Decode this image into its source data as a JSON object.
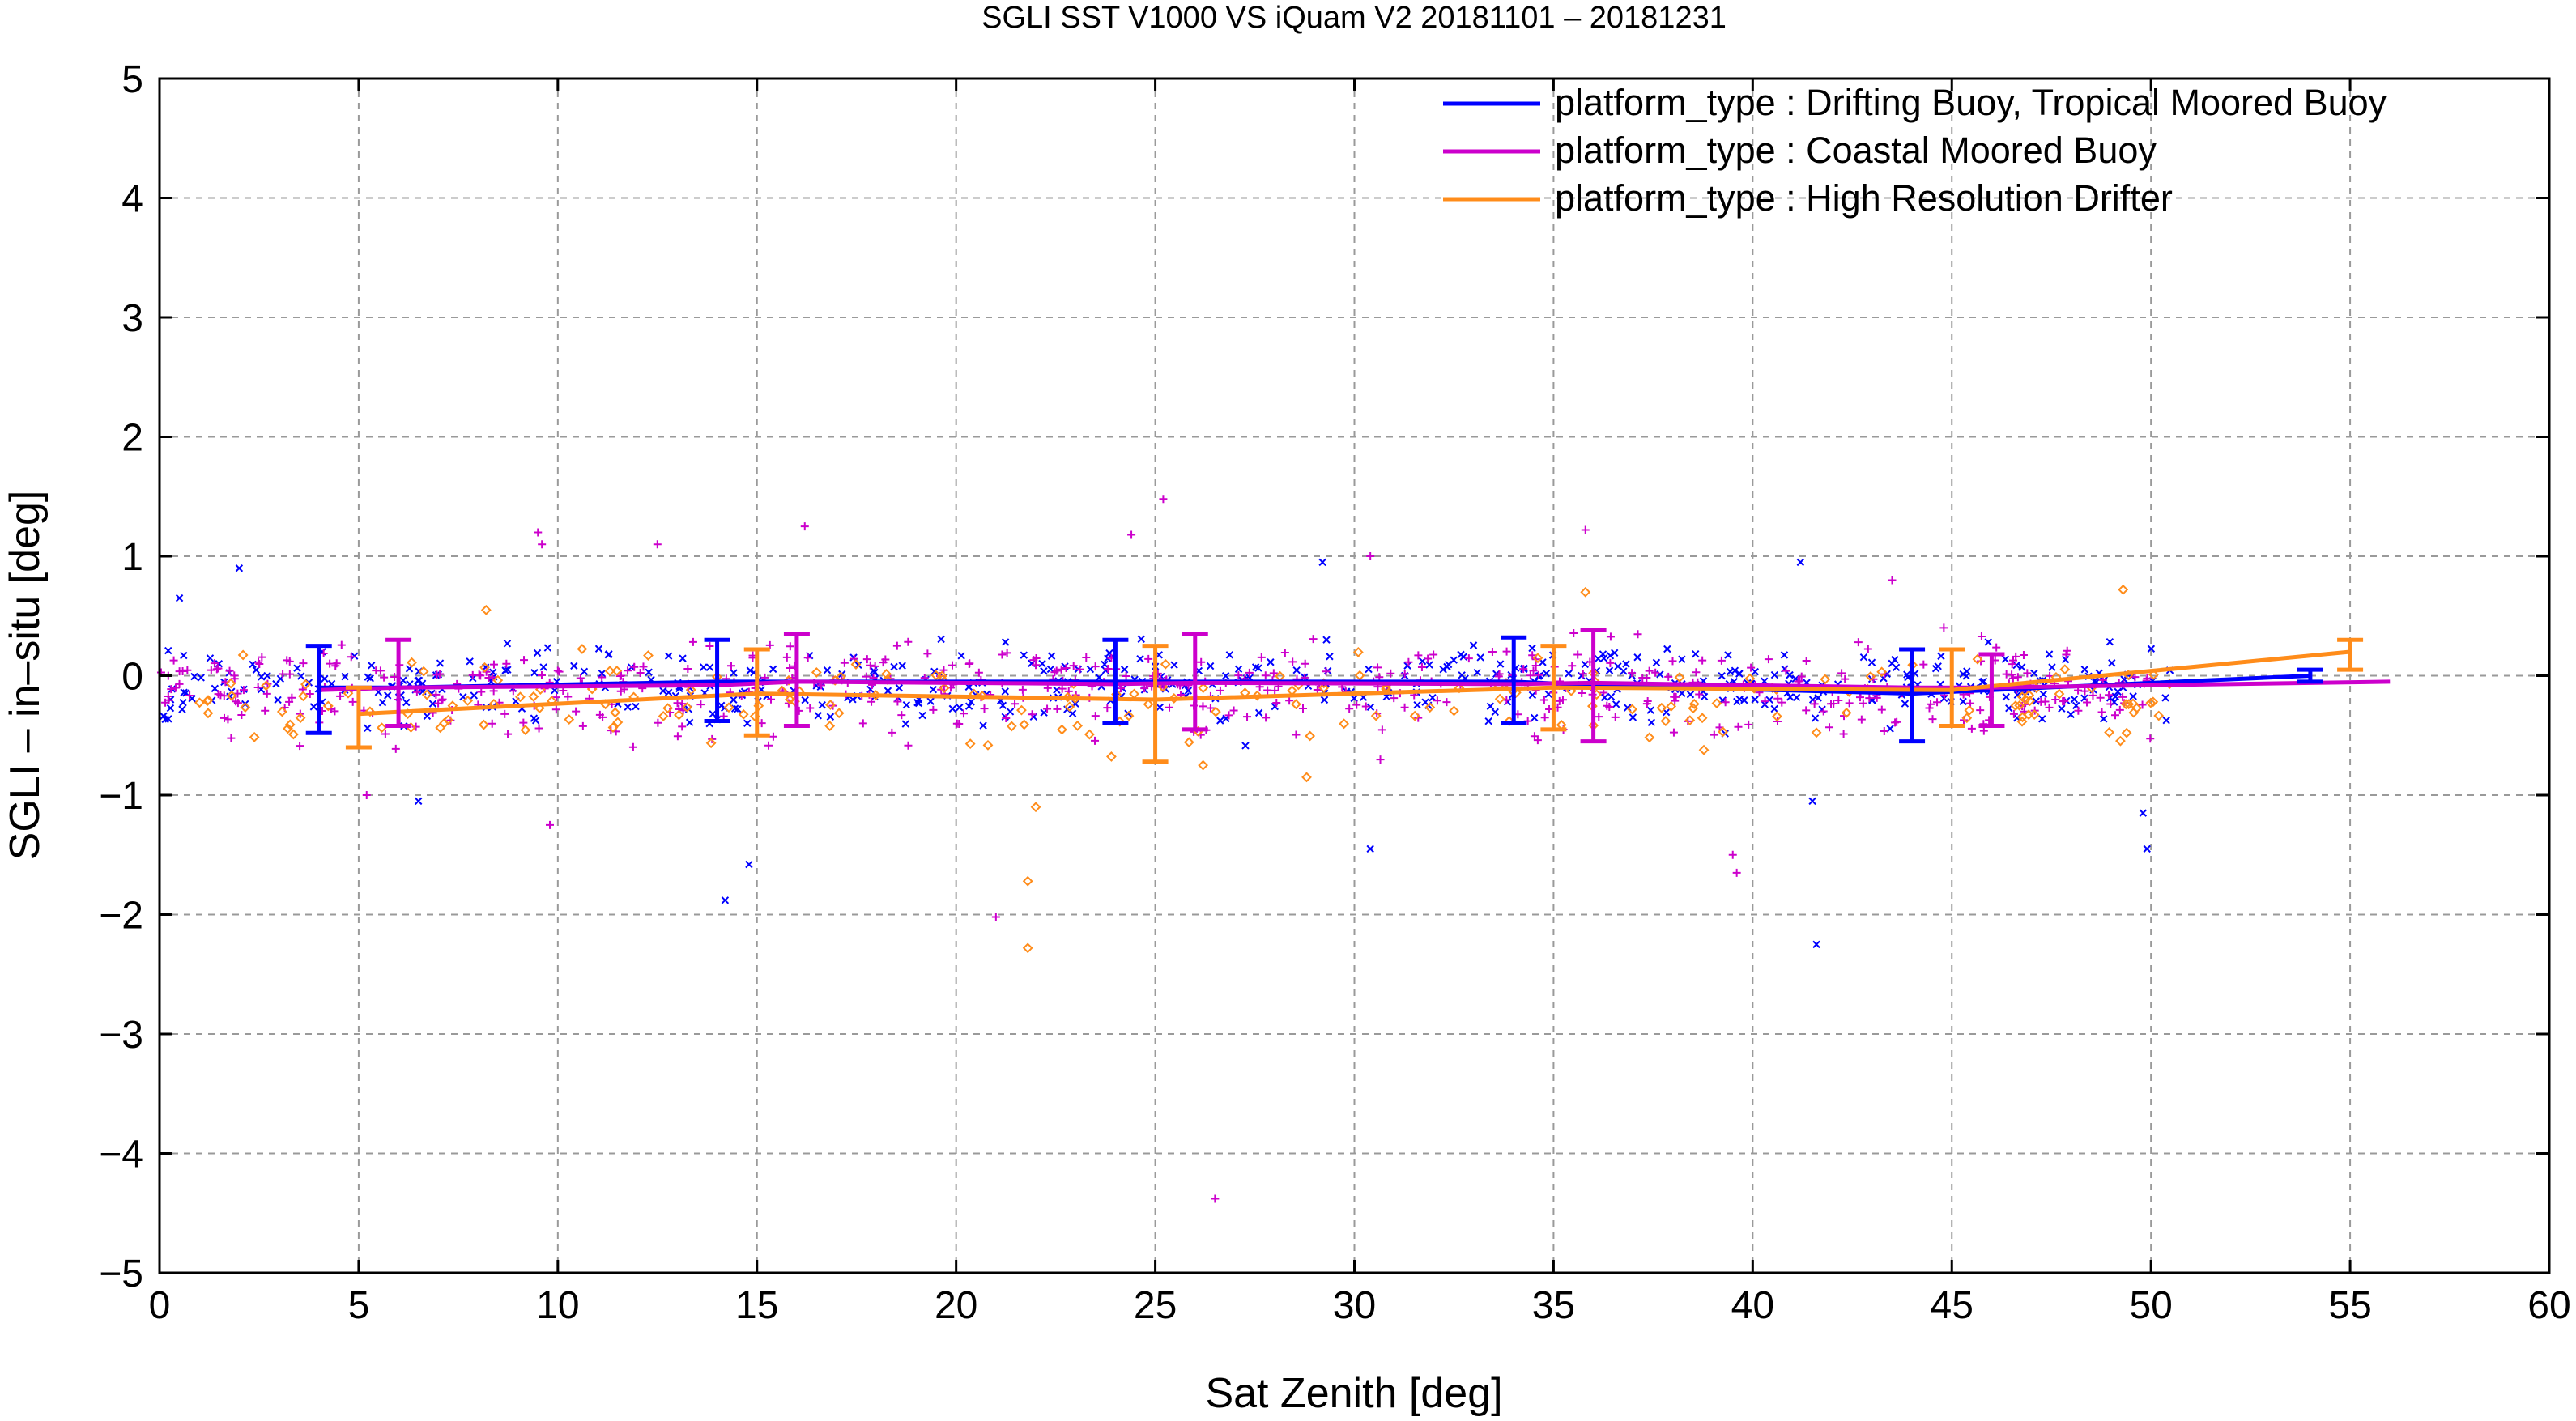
{
  "chart_data": {
    "type": "scatter",
    "title": "SGLI SST V1000 VS iQuam V2 20181101 – 20181231",
    "xlabel": "Sat Zenith [deg]",
    "ylabel": "SGLI – in–situ [deg]",
    "xlim": [
      0,
      60
    ],
    "ylim": [
      -5,
      5
    ],
    "x_ticks": [
      "0",
      "5",
      "10",
      "15",
      "20",
      "25",
      "30",
      "35",
      "40",
      "45",
      "50",
      "55",
      "60"
    ],
    "y_ticks": [
      "−5",
      "−4",
      "−3",
      "−2",
      "−1",
      "0",
      "1",
      "2",
      "3",
      "4",
      "5"
    ],
    "grid": true,
    "legend_position": "top-right",
    "series": [
      {
        "name": "platform_type : Drifting Buoy, Tropical Moored Buoy",
        "color": "#0000ff",
        "marker": "x",
        "mean_line": {
          "x": [
            4,
            6,
            14,
            16,
            24,
            26,
            34,
            36,
            44,
            46,
            54
          ],
          "y": [
            -0.1,
            -0.1,
            -0.05,
            -0.05,
            -0.05,
            -0.05,
            -0.05,
            -0.08,
            -0.15,
            -0.12,
            0.0
          ]
        },
        "error_bars": [
          {
            "x": 4,
            "low": -0.48,
            "high": 0.25
          },
          {
            "x": 14,
            "low": -0.38,
            "high": 0.3
          },
          {
            "x": 24,
            "low": -0.4,
            "high": 0.3
          },
          {
            "x": 34,
            "low": -0.4,
            "high": 0.32
          },
          {
            "x": 44,
            "low": -0.55,
            "high": 0.22
          },
          {
            "x": 54,
            "low": -0.05,
            "high": 0.05
          }
        ],
        "outliers": [
          {
            "x": 0.5,
            "y": 0.65
          },
          {
            "x": 2.0,
            "y": 0.9
          },
          {
            "x": 6.5,
            "y": -1.05
          },
          {
            "x": 14.2,
            "y": -1.88
          },
          {
            "x": 14.8,
            "y": -1.58
          },
          {
            "x": 29.2,
            "y": 0.95
          },
          {
            "x": 30.4,
            "y": -1.45
          },
          {
            "x": 41.2,
            "y": 0.95
          },
          {
            "x": 41.5,
            "y": -1.05
          },
          {
            "x": 41.6,
            "y": -2.25
          },
          {
            "x": 49.8,
            "y": -1.15
          },
          {
            "x": 49.9,
            "y": -1.45
          }
        ]
      },
      {
        "name": "platform_type : Coastal Moored Buoy",
        "color": "#cc00cc",
        "marker": "+",
        "mean_line": {
          "x": [
            4,
            6,
            14,
            16,
            24,
            26,
            34,
            36,
            44,
            46,
            56
          ],
          "y": [
            -0.12,
            -0.1,
            -0.08,
            -0.05,
            -0.07,
            -0.06,
            -0.07,
            -0.06,
            -0.1,
            -0.1,
            -0.05
          ]
        },
        "error_bars": [
          {
            "x": 6,
            "low": -0.42,
            "high": 0.3
          },
          {
            "x": 16,
            "low": -0.42,
            "high": 0.35
          },
          {
            "x": 26,
            "low": -0.45,
            "high": 0.35
          },
          {
            "x": 36,
            "low": -0.55,
            "high": 0.38
          },
          {
            "x": 46,
            "low": -0.42,
            "high": 0.18
          }
        ],
        "outliers": [
          {
            "x": 9.5,
            "y": 1.2
          },
          {
            "x": 9.6,
            "y": 1.1
          },
          {
            "x": 12.5,
            "y": 1.1
          },
          {
            "x": 16.2,
            "y": 1.25
          },
          {
            "x": 24.4,
            "y": 1.18
          },
          {
            "x": 25.2,
            "y": 1.48
          },
          {
            "x": 26.5,
            "y": -4.38
          },
          {
            "x": 21.0,
            "y": -2.02
          },
          {
            "x": 5.2,
            "y": -1.0
          },
          {
            "x": 9.8,
            "y": -1.25
          },
          {
            "x": 35.8,
            "y": 1.22
          },
          {
            "x": 39.5,
            "y": -1.5
          },
          {
            "x": 39.6,
            "y": -1.65
          },
          {
            "x": 43.5,
            "y": 0.8
          },
          {
            "x": 30.4,
            "y": 1.0
          }
        ]
      },
      {
        "name": "platform_type : High Resolution Drifter",
        "color": "#ff8c1a",
        "marker": "diamond",
        "mean_line": {
          "x": [
            5,
            15,
            25,
            35,
            45,
            55
          ],
          "y": [
            -0.32,
            -0.15,
            -0.2,
            -0.1,
            -0.12,
            0.2
          ]
        },
        "error_bars": [
          {
            "x": 5,
            "low": -0.6,
            "high": -0.1
          },
          {
            "x": 15,
            "low": -0.5,
            "high": 0.22
          },
          {
            "x": 25,
            "low": -0.72,
            "high": 0.25
          },
          {
            "x": 35,
            "low": -0.45,
            "high": 0.25
          },
          {
            "x": 45,
            "low": -0.42,
            "high": 0.22
          },
          {
            "x": 55,
            "low": 0.05,
            "high": 0.3
          }
        ],
        "outliers": [
          {
            "x": 21.8,
            "y": -1.72
          },
          {
            "x": 21.8,
            "y": -2.28
          },
          {
            "x": 22.0,
            "y": -1.1
          },
          {
            "x": 8.2,
            "y": 0.55
          },
          {
            "x": 35.8,
            "y": 0.7
          },
          {
            "x": 49.3,
            "y": 0.72
          },
          {
            "x": 26.2,
            "y": -0.75
          },
          {
            "x": 28.8,
            "y": -0.85
          }
        ]
      }
    ]
  }
}
